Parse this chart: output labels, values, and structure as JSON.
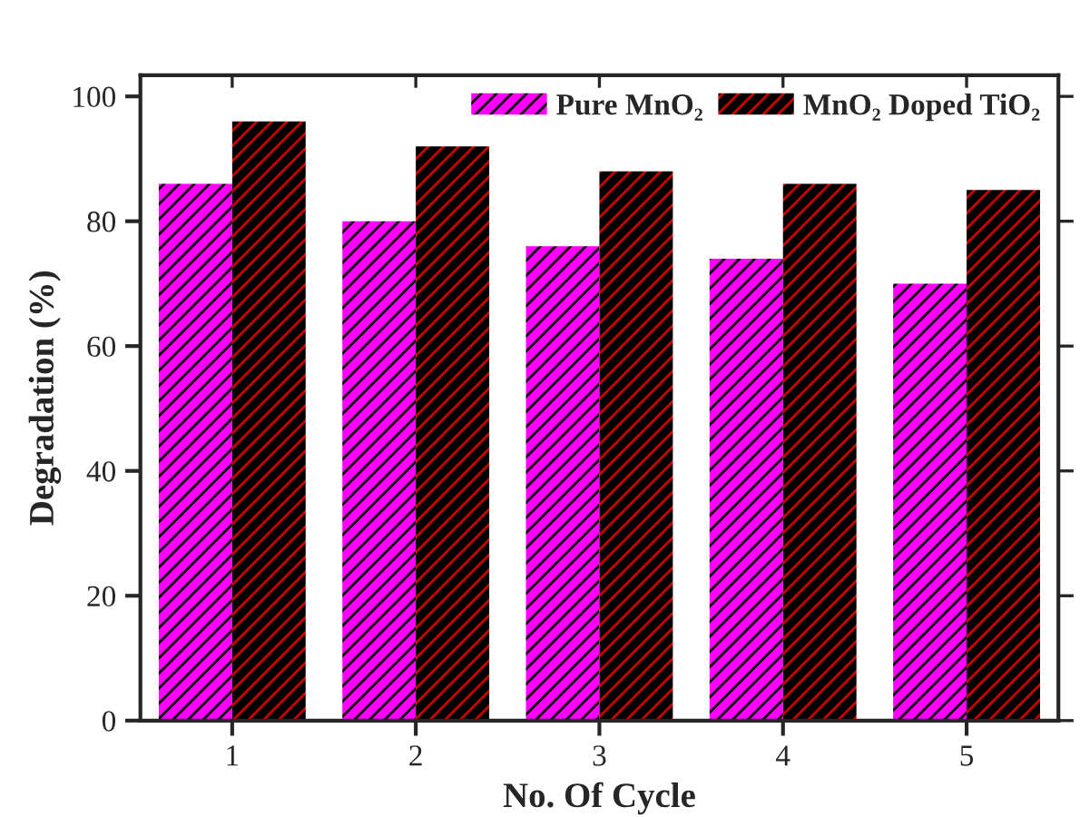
{
  "chart_data": {
    "type": "bar",
    "xlabel": "No. Of Cycle",
    "ylabel": "Degradation (%)",
    "categories": [
      "1",
      "2",
      "3",
      "4",
      "5"
    ],
    "series": [
      {
        "name": "Pure MnO₂",
        "color": "#ff00ff",
        "values": [
          86,
          80,
          76,
          74,
          70
        ]
      },
      {
        "name": "MnO₂ Doped TiO₂",
        "color": "#000000",
        "values": [
          96,
          92,
          88,
          86,
          85
        ]
      }
    ],
    "ylim": [
      0,
      103.4
    ],
    "yticks": [
      0,
      20,
      40,
      60,
      80,
      100
    ],
    "grid": false,
    "legend": "top right"
  }
}
